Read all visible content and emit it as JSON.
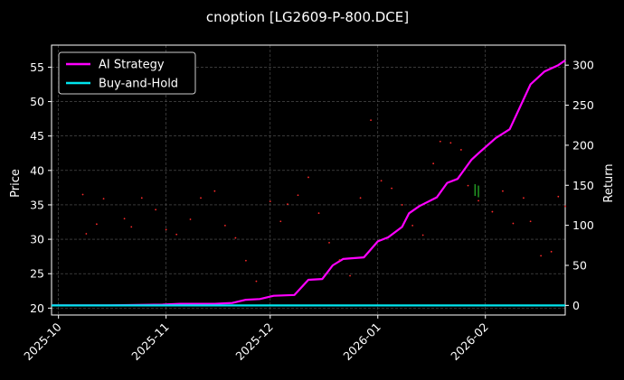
{
  "chart_data": {
    "type": "line",
    "title": "cnoption [LG2609-P-800.DCE]",
    "xlabel": "",
    "ylabel": "Price",
    "ylabel_right": "Return",
    "x_axis_type": "date",
    "xlim": [
      "2025-09-29",
      "2026-02-24"
    ],
    "ylim": [
      19,
      58.2
    ],
    "ylim_right": [
      -12,
      325
    ],
    "xticks": [
      "2025-10-01",
      "2025-11-01",
      "2025-12-01",
      "2026-01-01",
      "2026-02-01"
    ],
    "xtick_labels": [
      "2025-10",
      "2025-11",
      "2025-12",
      "2026-01",
      "2026-02"
    ],
    "yticks": [
      20,
      25,
      30,
      35,
      40,
      45,
      50,
      55
    ],
    "yticks_right": [
      0,
      50,
      100,
      150,
      200,
      250,
      300
    ],
    "grid": true,
    "legend_position": "top-left",
    "background": "#000000",
    "series": [
      {
        "name": "AI Strategy",
        "axis": "right",
        "color": "#ff00ff",
        "points": [
          [
            "2025-09-29",
            0
          ],
          [
            "2025-10-15",
            0
          ],
          [
            "2025-10-31",
            1
          ],
          [
            "2025-11-05",
            2
          ],
          [
            "2025-11-15",
            2
          ],
          [
            "2025-11-20",
            3
          ],
          [
            "2025-11-24",
            7
          ],
          [
            "2025-11-28",
            8
          ],
          [
            "2025-12-02",
            12
          ],
          [
            "2025-12-08",
            13
          ],
          [
            "2025-12-12",
            32
          ],
          [
            "2025-12-16",
            33
          ],
          [
            "2025-12-19",
            50
          ],
          [
            "2025-12-22",
            58
          ],
          [
            "2025-12-28",
            60
          ],
          [
            "2026-01-01",
            80
          ],
          [
            "2026-01-04",
            85
          ],
          [
            "2026-01-08",
            98
          ],
          [
            "2026-01-10",
            115
          ],
          [
            "2026-01-13",
            124
          ],
          [
            "2026-01-18",
            135
          ],
          [
            "2026-01-21",
            153
          ],
          [
            "2026-01-24",
            158
          ],
          [
            "2026-01-28",
            182
          ],
          [
            "2026-01-30",
            190
          ],
          [
            "2026-02-04",
            209
          ],
          [
            "2026-02-08",
            220
          ],
          [
            "2026-02-14",
            276
          ],
          [
            "2026-02-18",
            292
          ],
          [
            "2026-02-22",
            300
          ],
          [
            "2026-02-24",
            306
          ]
        ]
      },
      {
        "name": "Buy-and-Hold",
        "axis": "right",
        "color": "#00e5ee",
        "points": [
          [
            "2025-09-29",
            0
          ],
          [
            "2025-10-20",
            0
          ],
          [
            "2025-11-10",
            0
          ],
          [
            "2025-12-01",
            0
          ],
          [
            "2025-12-25",
            0
          ],
          [
            "2026-01-20",
            0
          ],
          [
            "2026-02-24",
            0
          ]
        ]
      }
    ],
    "price_points": {
      "axis": "left",
      "color": "#ff2a2a",
      "points": [
        [
          "2025-10-08",
          36.5
        ],
        [
          "2025-10-09",
          30.8
        ],
        [
          "2025-10-12",
          32.2
        ],
        [
          "2025-10-14",
          35.9
        ],
        [
          "2025-10-20",
          33.0
        ],
        [
          "2025-10-22",
          31.8
        ],
        [
          "2025-10-25",
          36.0
        ],
        [
          "2025-10-29",
          34.3
        ],
        [
          "2025-11-01",
          31.4
        ],
        [
          "2025-11-04",
          30.7
        ],
        [
          "2025-11-08",
          32.9
        ],
        [
          "2025-11-11",
          36.0
        ],
        [
          "2025-11-15",
          37.0
        ],
        [
          "2025-11-18",
          32.0
        ],
        [
          "2025-11-21",
          30.2
        ],
        [
          "2025-11-24",
          26.9
        ],
        [
          "2025-11-27",
          23.9
        ],
        [
          "2025-12-01",
          35.5
        ],
        [
          "2025-12-04",
          32.6
        ],
        [
          "2025-12-06",
          35.1
        ],
        [
          "2025-12-09",
          36.4
        ],
        [
          "2025-12-12",
          39.0
        ],
        [
          "2025-12-15",
          33.8
        ],
        [
          "2025-12-18",
          29.5
        ],
        [
          "2025-12-21",
          27.0
        ],
        [
          "2025-12-24",
          24.7
        ],
        [
          "2025-12-27",
          36.0
        ],
        [
          "2025-12-30",
          47.3
        ],
        [
          "2026-01-02",
          38.5
        ],
        [
          "2026-01-05",
          37.4
        ],
        [
          "2026-01-08",
          35.0
        ],
        [
          "2026-01-11",
          32.0
        ],
        [
          "2026-01-14",
          30.6
        ],
        [
          "2026-01-17",
          41.0
        ],
        [
          "2026-01-19",
          44.2
        ],
        [
          "2026-01-22",
          44.0
        ],
        [
          "2026-01-25",
          43.0
        ],
        [
          "2026-01-27",
          37.8
        ],
        [
          "2026-01-30",
          35.6
        ],
        [
          "2026-02-03",
          34.0
        ],
        [
          "2026-02-06",
          37.0
        ],
        [
          "2026-02-09",
          32.3
        ],
        [
          "2026-02-12",
          36.0
        ],
        [
          "2026-02-14",
          32.6
        ],
        [
          "2026-02-17",
          27.6
        ],
        [
          "2026-02-20",
          28.2
        ],
        [
          "2026-02-22",
          36.2
        ],
        [
          "2026-02-24",
          34.8
        ]
      ]
    },
    "green_marks": {
      "axis": "left",
      "color": "#33dd33",
      "points": [
        [
          "2026-01-29",
          36.3,
          38.0
        ],
        [
          "2026-01-30",
          36.1,
          37.8
        ]
      ]
    }
  }
}
